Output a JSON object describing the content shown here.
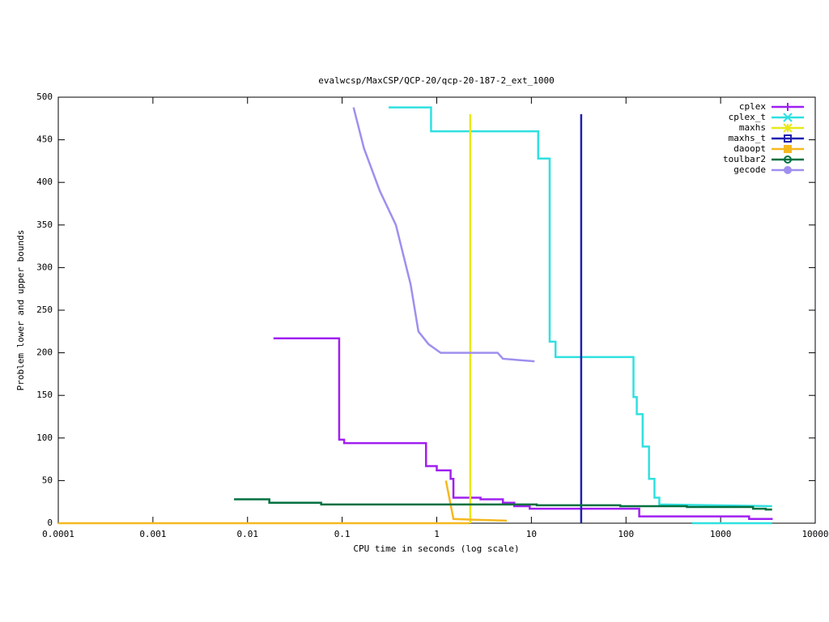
{
  "chart_data": {
    "type": "line",
    "title": "evalwcsp/MaxCSP/QCP-20/qcp-20-187-2_ext_1000",
    "xlabel": "CPU time in seconds (log scale)",
    "ylabel": "Problem lower and upper bounds",
    "xscale": "log",
    "legend": "top right",
    "xlim": [
      0.0001,
      10000
    ],
    "xticks": [
      0.0001,
      0.001,
      0.01,
      0.1,
      1,
      10,
      100,
      1000,
      10000
    ],
    "ylim": [
      0,
      500
    ],
    "yticks": [
      0,
      50,
      100,
      150,
      200,
      250,
      300,
      350,
      400,
      450,
      500
    ],
    "series": [
      {
        "name": "cplex",
        "color": "#a020f0",
        "x": [
          0.0188,
          0.093,
          0.093,
          0.105,
          0.105,
          0.77,
          0.77,
          1.0,
          1.0,
          1.4,
          1.4,
          1.5,
          1.5,
          2.9,
          2.9,
          5.0,
          5.0,
          6.6,
          6.6,
          9.6,
          9.6,
          138,
          138,
          2000,
          2000,
          3550
        ],
        "values": [
          217,
          217,
          98,
          98,
          94,
          94,
          67,
          67,
          62,
          62,
          52,
          52,
          30,
          30,
          28,
          28,
          24,
          24,
          20,
          20,
          17,
          17,
          8,
          8,
          5,
          5
        ]
      },
      {
        "name": "cplex_t",
        "color": "#30e0e0",
        "x": [
          0.31,
          0.87,
          0.87,
          11.8,
          11.8,
          15.6,
          15.6,
          18,
          18,
          120,
          120,
          130,
          130,
          150,
          150,
          175,
          175,
          200,
          200,
          225,
          225,
          3500,
          500,
          500,
          3500
        ],
        "values": [
          488,
          488,
          460,
          460,
          428,
          428,
          213,
          213,
          195,
          195,
          148,
          148,
          128,
          128,
          90,
          90,
          52,
          52,
          30,
          30,
          22,
          20,
          null,
          0,
          0
        ]
      },
      {
        "name": "maxhs",
        "color": "#e8e818",
        "x": [
          2.26,
          2.26
        ],
        "values": [
          480,
          0
        ]
      },
      {
        "name": "maxhs_t",
        "color": "#2020b0",
        "x": [
          33.6,
          33.6
        ],
        "values": [
          480,
          0
        ]
      },
      {
        "name": "daoopt",
        "color": "#f5b820",
        "x": [
          0.0001,
          2.2,
          1.25,
          1.25,
          1.5,
          2.5,
          5.5
        ],
        "values": [
          0,
          0,
          null,
          50,
          5,
          4,
          3
        ]
      },
      {
        "name": "toulbar2",
        "color": "#007040",
        "x": [
          0.0072,
          0.017,
          0.017,
          0.06,
          0.06,
          11.4,
          11.4,
          87,
          87,
          440,
          440,
          2200,
          2200,
          3000,
          3000,
          3500
        ],
        "values": [
          28,
          28,
          24,
          24,
          22,
          22,
          21,
          21,
          20,
          20,
          19,
          19,
          17,
          17,
          16,
          16
        ]
      },
      {
        "name": "gecode",
        "color": "#9f8fef",
        "x": [
          0.132,
          0.17,
          0.25,
          0.37,
          0.53,
          0.64,
          0.82,
          1.1,
          4.4,
          5.0,
          10.8
        ],
        "values": [
          488,
          440,
          390,
          350,
          280,
          225,
          210,
          200,
          200,
          193,
          190
        ]
      }
    ]
  }
}
